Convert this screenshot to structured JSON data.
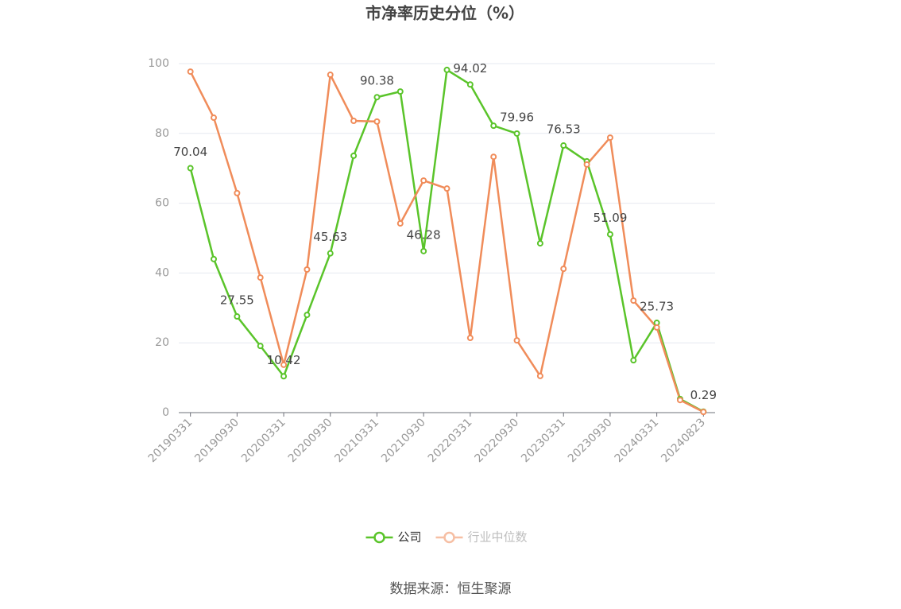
{
  "chart_data": {
    "type": "line",
    "title": "市净率历史分位（%）",
    "source": "数据来源：恒生聚源",
    "categories": [
      "20190331",
      null,
      "20190930",
      null,
      "20200331",
      null,
      "20200930",
      null,
      "20210331",
      null,
      "20210930",
      null,
      "20220331",
      null,
      "20220930",
      null,
      "20230331",
      null,
      "20230930",
      null,
      "20240331",
      null,
      "20240823"
    ],
    "series": [
      {
        "name": "公司",
        "color": "#5ac42a",
        "values": [
          70.04,
          44.0,
          27.55,
          19.1,
          10.42,
          28.0,
          45.63,
          73.6,
          90.38,
          92.0,
          46.28,
          98.2,
          94.02,
          82.2,
          79.96,
          48.5,
          76.53,
          72.0,
          51.09,
          15.0,
          25.73,
          3.9,
          0.29
        ],
        "value_labels": [
          "70.04",
          null,
          "27.55",
          null,
          "10.42",
          null,
          "45.63",
          null,
          "90.38",
          null,
          "46.28",
          null,
          "94.02",
          null,
          "79.96",
          null,
          "76.53",
          null,
          "51.09",
          null,
          "25.73",
          null,
          "0.29"
        ]
      },
      {
        "name": "行业中位数",
        "color": "#f08c5a",
        "values": [
          97.7,
          84.5,
          62.9,
          38.7,
          13.7,
          41.0,
          96.8,
          83.6,
          83.4,
          54.2,
          66.5,
          64.2,
          21.4,
          73.3,
          20.7,
          10.5,
          41.2,
          71.1,
          78.8,
          32.1,
          24.4,
          3.6,
          0.2
        ]
      }
    ],
    "ylim": [
      0,
      100
    ],
    "yticks": [
      0,
      20,
      40,
      60,
      80,
      100
    ],
    "grid": true
  }
}
